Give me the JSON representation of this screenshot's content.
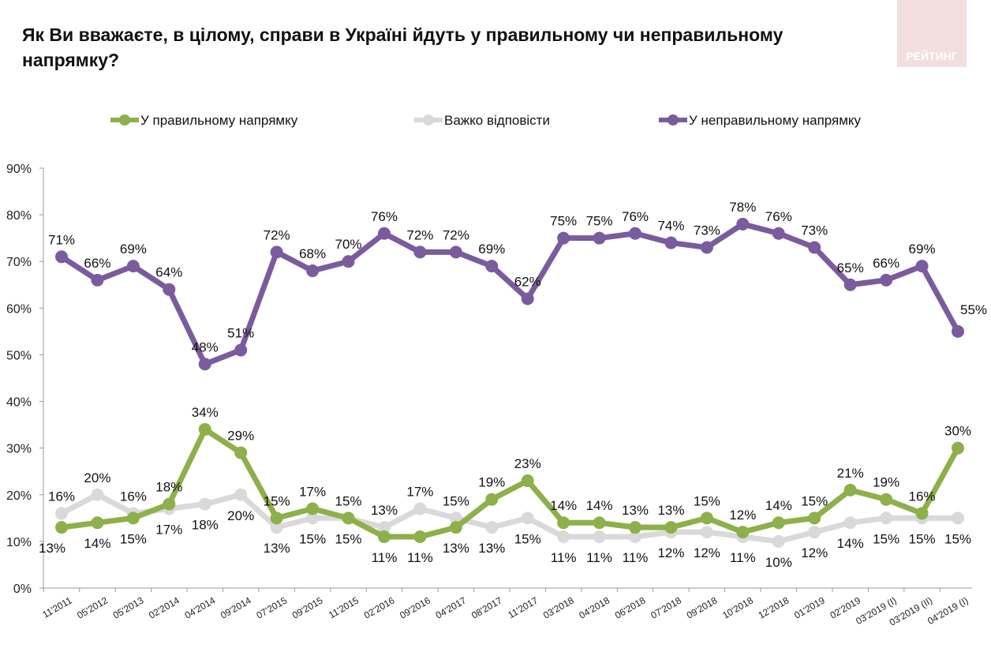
{
  "title": "Як Ви вважаєте, в цілому, справи в Україні йдуть у правильному чи неправильному напрямку?",
  "logo_text": "РЕЙТИНГ",
  "chart_data": {
    "type": "line",
    "title": "Як Ви вважаєте, в цілому, справи в Україні йдуть у правильному чи неправильному напрямку?",
    "xlabel": "",
    "ylabel": "",
    "ylim": [
      0,
      90
    ],
    "yticks": [
      "0%",
      "10%",
      "20%",
      "30%",
      "40%",
      "50%",
      "60%",
      "70%",
      "80%",
      "90%"
    ],
    "legend_position": "top",
    "grid": false,
    "categories": [
      "11'2011",
      "05'2012",
      "05'2013",
      "02'2014",
      "04'2014",
      "09'2014",
      "07'2015",
      "09'2015",
      "11'2015",
      "02'2016",
      "09'2016",
      "04'2017",
      "08'2017",
      "11'2017",
      "03'2018",
      "04'2018",
      "06'2018",
      "07'2018",
      "09'2018",
      "10'2018",
      "12'2018",
      "01'2019",
      "02'2019",
      "03'2019 (I)",
      "03'2019 (II)",
      "04'2019 (I)"
    ],
    "series": [
      {
        "name": "У правильному напрямку",
        "color": "#8db04a",
        "values": [
          13,
          14,
          15,
          18,
          34,
          29,
          15,
          17,
          15,
          11,
          11,
          13,
          19,
          23,
          14,
          14,
          13,
          13,
          15,
          12,
          14,
          15,
          21,
          19,
          16,
          30
        ]
      },
      {
        "name": "Важко відповісти",
        "color": "#d9d9d9",
        "values": [
          16,
          20,
          16,
          17,
          18,
          20,
          13,
          15,
          15,
          13,
          17,
          15,
          13,
          15,
          11,
          11,
          11,
          12,
          12,
          11,
          10,
          12,
          14,
          15,
          15,
          15
        ]
      },
      {
        "name": "У неправильному напрямку",
        "color": "#7a5c9e",
        "values": [
          71,
          66,
          69,
          64,
          48,
          51,
          72,
          68,
          70,
          76,
          72,
          72,
          69,
          62,
          75,
          75,
          76,
          74,
          73,
          78,
          76,
          73,
          65,
          66,
          69,
          55
        ]
      }
    ]
  }
}
